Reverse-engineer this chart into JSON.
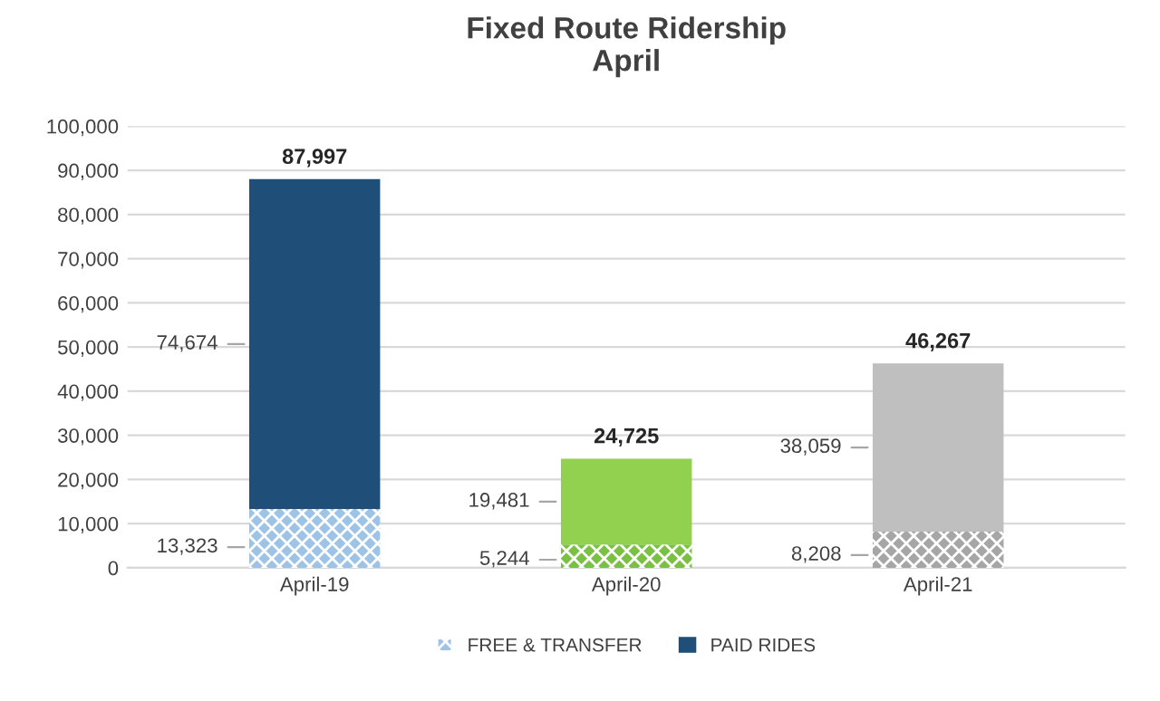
{
  "chart_data": {
    "type": "bar",
    "title": "Fixed Route Ridership\nApril",
    "stacked": true,
    "categories": [
      "April-19",
      "April-20",
      "April-21"
    ],
    "series": [
      {
        "name": "FREE & TRANSFER",
        "color": "#9dc3e6",
        "colors": [
          "#9dc3e6",
          "#7ac143",
          "#a6a6a6"
        ],
        "values": [
          13323,
          5244,
          8208
        ],
        "value_labels": [
          "13,323",
          "5,244",
          "8,208"
        ]
      },
      {
        "name": "PAID RIDES",
        "color": "#1f4e79",
        "colors": [
          "#1f4e79",
          "#92d050",
          "#bfbfbf"
        ],
        "values": [
          74674,
          19481,
          38059
        ],
        "value_labels": [
          "74,674",
          "19,481",
          "38,059"
        ]
      }
    ],
    "totals": [
      "87,997",
      "24,725",
      "46,267"
    ],
    "ylim": [
      0,
      100000
    ],
    "yticks": [
      0,
      {
        "value": 10000,
        "label": "10,000"
      },
      {
        "value": 20000,
        "label": "20,000"
      },
      {
        "value": 30000,
        "label": "30,000"
      },
      {
        "value": 40000,
        "label": "40,000"
      },
      {
        "value": 50000,
        "label": "50,000"
      },
      {
        "value": 60000,
        "label": "60,000"
      },
      {
        "value": 70000,
        "label": "70,000"
      },
      {
        "value": 80000,
        "label": "80,000"
      },
      {
        "value": 90000,
        "label": "90,000"
      },
      {
        "value": 100000,
        "label": "100,000"
      }
    ],
    "grid": "y",
    "legend": "bottom"
  }
}
